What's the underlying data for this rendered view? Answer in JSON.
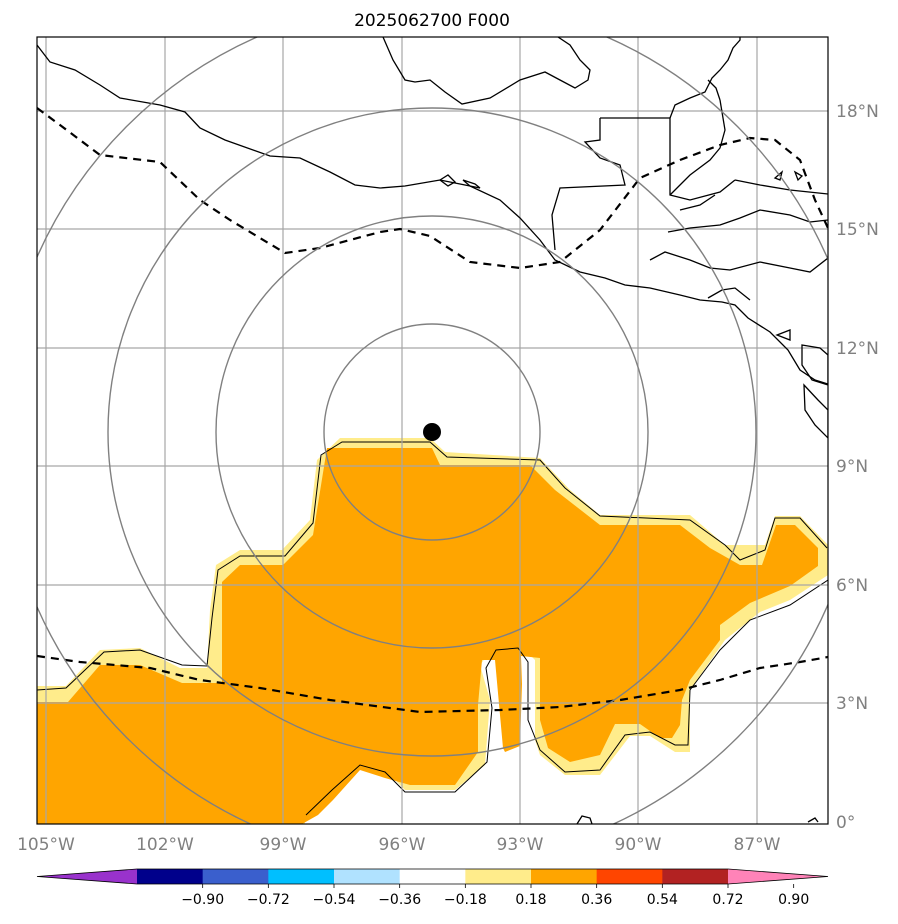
{
  "title": "2025062700 F000",
  "lat_labels": [
    "18°N",
    "15°N",
    "12°N",
    "9°N",
    "6°N",
    "3°N",
    "0°"
  ],
  "lon_labels": [
    "105°W",
    "102°W",
    "99°W",
    "96°W",
    "93°W",
    "90°W",
    "87°W"
  ],
  "colorbar": {
    "ticks": [
      "−0.90",
      "−0.72",
      "−0.54",
      "−0.36",
      "−0.18",
      "0.18",
      "0.36",
      "0.54",
      "0.72",
      "0.90"
    ],
    "colors": [
      "#9932cc",
      "#00008b",
      "#3a5fcd",
      "#00bfff",
      "#b0e2ff",
      "#ffffff",
      "#ffec8b",
      "#ffa500",
      "#ff4500",
      "#b22222",
      "#ff83b8"
    ]
  },
  "legend_colors": {
    "shade_primary": "#ffa500",
    "shade_edge": "#ffec8b",
    "grid": "#a6a6a6",
    "range_rings": "#808080",
    "coastline": "#000000"
  },
  "storm_center": {
    "lon": -95.3,
    "lat": 9.9
  }
}
